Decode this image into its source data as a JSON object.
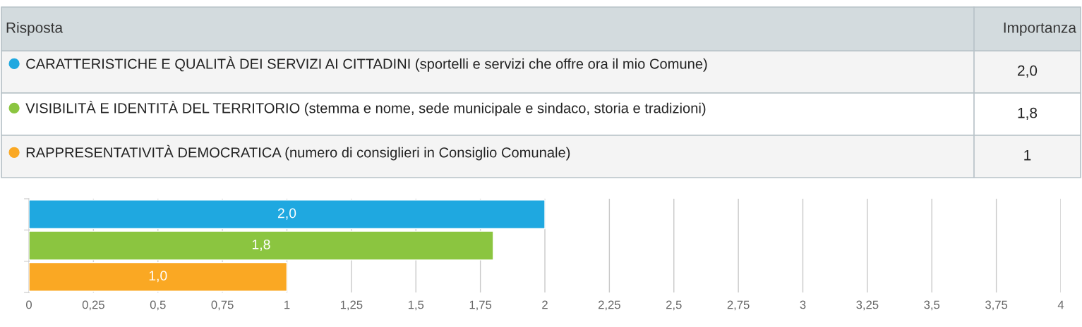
{
  "chart_data": {
    "type": "bar",
    "orientation": "horizontal",
    "categories": [
      null,
      null,
      null
    ],
    "series": [
      {
        "name": "CARATTERISTICHE E QUALITÀ DEI SERVIZI AI CITTADINI (sportelli e servizi che offre ora il mio Comune)",
        "color": "#1fa8e0",
        "values": [
          2.0,
          null,
          null
        ],
        "value_labels": [
          "2,0",
          null,
          null
        ]
      },
      {
        "name": "VISIBILITÀ E IDENTITÀ DEL TERRITORIO (stemma e nome, sede municipale e sindaco, storia e tradizioni)",
        "color": "#8bc540",
        "values": [
          null,
          1.8,
          null
        ],
        "value_labels": [
          null,
          "1,8",
          null
        ]
      },
      {
        "name": "RAPPRESENTATIVITÀ DEMOCRATICA (numero di consiglieri in Consiglio Comunale)",
        "color": "#faa823",
        "values": [
          null,
          null,
          1.0
        ],
        "value_labels": [
          null,
          null,
          "1,0"
        ]
      }
    ],
    "annotations": [
      "Risposta",
      "Importanza",
      "2,0",
      "1,8",
      "1"
    ],
    "legend": "top",
    "xlim": [
      0,
      4
    ],
    "xticks": [
      0,
      {
        "value": 0.25,
        "label": "0,25"
      },
      {
        "value": 0.5,
        "label": "0,5"
      },
      {
        "value": 0.75,
        "label": "0,75"
      },
      1,
      {
        "value": 1.25,
        "label": "1,25"
      },
      {
        "value": 1.5,
        "label": "1,5"
      },
      {
        "value": 1.75,
        "label": "1,75"
      },
      2,
      {
        "value": 2.25,
        "label": "2,25"
      },
      {
        "value": 2.5,
        "label": "2,5"
      },
      {
        "value": 2.75,
        "label": "2,75"
      },
      3,
      {
        "value": 3.25,
        "label": "3,25"
      },
      {
        "value": 3.5,
        "label": "3,5"
      },
      {
        "value": 3.75,
        "label": "3,75"
      },
      4
    ],
    "grid": "x",
    "tick_labels": "x"
  }
}
